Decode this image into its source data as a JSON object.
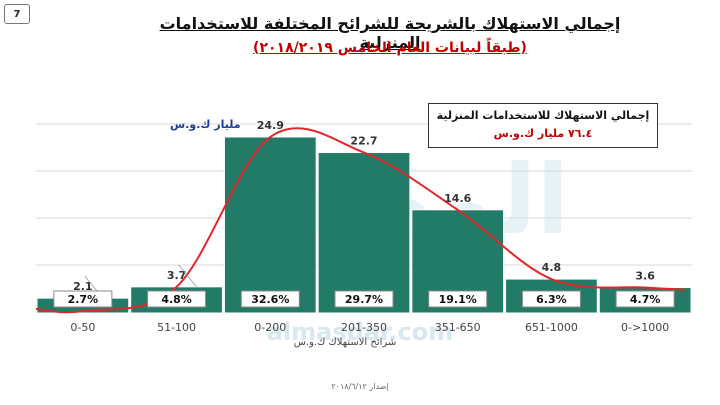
{
  "page_number": "7",
  "watermark": {
    "text": "المصدر",
    "url": "almasdar.com"
  },
  "chart_data": {
    "type": "bar",
    "title": "إجمالي الاستهلاك بالشريحة للشرائح المختلفة للاستخدامات المنزلية",
    "subtitle": "(طبقاً لبيانات العام الخامس ٢٠١٨/٢٠١٩)",
    "unit_label": "مليار ك.و.س",
    "xlabel": "شرائح الاستهلاك ك.و.س",
    "ylabel": "",
    "categories": [
      "0-50",
      "51-100",
      "0-200",
      "201-350",
      "351-650",
      "651-1000",
      "0->1000"
    ],
    "values": [
      2.1,
      3.7,
      24.9,
      22.7,
      14.6,
      4.8,
      3.6
    ],
    "shares": [
      "2.7%",
      "4.8%",
      "32.6%",
      "29.7%",
      "19.1%",
      "6.3%",
      "4.7%"
    ],
    "ylim": [
      0,
      27
    ],
    "grid": true,
    "trend_line": true,
    "bar_color": "#217b66",
    "trend_color": "#e3262b",
    "total_box": {
      "title": "إجمالي الاستهلاك للاستخدامات المنزلية",
      "value": "٧٦.٤ مليار ك.و.س"
    }
  },
  "footer": "إصدار ٢٠١٨/٦/١٢"
}
